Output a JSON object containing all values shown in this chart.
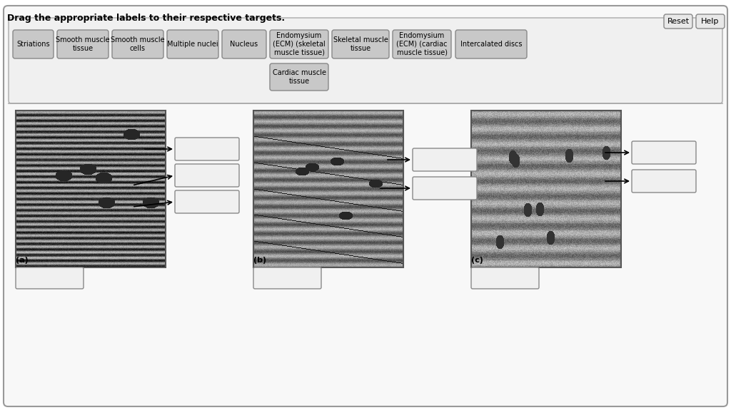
{
  "title": "Drag the appropriate labels to their respective targets.",
  "bg_color": "#ffffff",
  "outer_border_color": "#aaaaaa",
  "button_bg": "#c8c8c8",
  "button_border": "#888888",
  "label_bg": "#f0f0f0",
  "label_border": "#888888",
  "top_labels": [
    "Striations",
    "Smooth muscle\ntissue",
    "Smooth muscle\ncells",
    "Multiple nuclei",
    "Nucleus",
    "Endomysium\n(ECM) (skeletal\nmuscle tissue)",
    "Skeletal muscle\ntissue",
    "Endomysium\n(ECM) (cardiac\nmuscle tissue)",
    "Intercalated discs"
  ],
  "second_row_label": "Cardiac muscle\ntissue",
  "panel_labels": [
    "(a)",
    "(b)",
    "(c)"
  ],
  "reset_help": [
    "Reset",
    "Help"
  ]
}
